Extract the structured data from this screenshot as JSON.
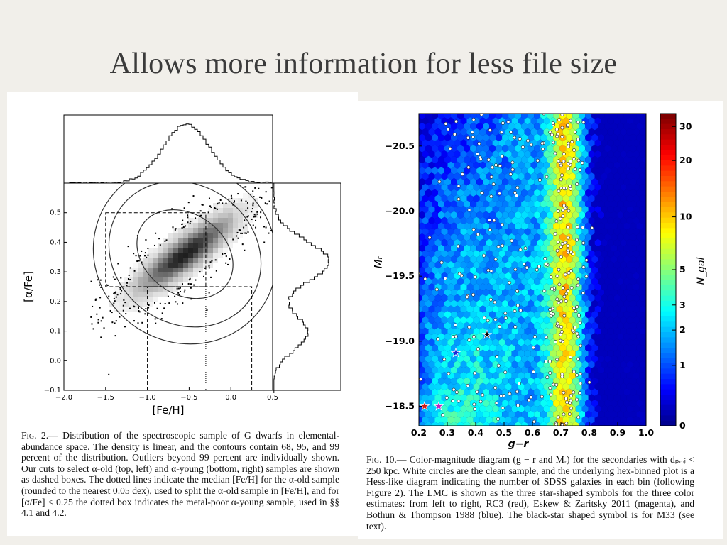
{
  "slide": {
    "title": "Allows more information for less file size"
  },
  "left_figure": {
    "chart_data": {
      "type": "scatter",
      "xlabel": "[Fe/H]",
      "ylabel": "[α/Fe]",
      "xlim": [
        -2.0,
        0.5
      ],
      "ylim": [
        -0.1,
        0.6
      ],
      "x_ticks": [
        "−2.0",
        "−1.5",
        "−1.0",
        "−0.5",
        "0.0",
        "0.5"
      ],
      "y_ticks": [
        "−0.1",
        "0.0",
        "0.1",
        "0.2",
        "0.3",
        "0.4",
        "0.5"
      ],
      "contour_levels_percent": [
        68,
        95,
        99
      ],
      "density_peak": {
        "x": -0.6,
        "y": 0.38
      },
      "alpha_old_box": {
        "x": [
          -1.5,
          -0.3
        ],
        "y": [
          0.25,
          0.5
        ]
      },
      "alpha_young_box": {
        "x": [
          -1.0,
          0.25
        ],
        "y": [
          -0.1,
          0.25
        ]
      },
      "metal_poor_young_box": {
        "x": [
          -1.0,
          -0.3
        ],
        "y": [
          -0.1,
          0.25
        ]
      },
      "median_feh_alpha_old": -0.55,
      "median_feh_alpha_young": -0.3
    },
    "fig_label": "Fig. 2.",
    "caption": "— Distribution of the spectroscopic sample of G dwarfs in elemental-abundance space. The density is linear, and the contours contain 68, 95, and 99 percent of the distribution. Outliers beyond 99 percent are individually shown. Our cuts to select α-old (top, left) and α-young (bottom, right) samples are shown as dashed boxes. The dotted lines indicate the median [Fe/H] for the α-old sample (rounded to the nearest 0.05 dex), used to split the α-old sample in [Fe/H], and for [α/Fe] < 0.25 the dotted box indicates the metal-poor α-young sample, used in §§ 4.1 and 4.2."
  },
  "right_figure": {
    "chart_data": {
      "type": "heatmap",
      "xlabel": "g−r",
      "ylabel": "Mᵣ",
      "xlim": [
        0.2,
        1.0
      ],
      "ylim": [
        -20.75,
        -18.35
      ],
      "x_ticks": [
        "0.2",
        "0.3",
        "0.4",
        "0.5",
        "0.6",
        "0.7",
        "0.8",
        "0.9",
        "1.0"
      ],
      "y_ticks": [
        "−20.5",
        "−20.0",
        "−19.5",
        "−19.0",
        "−18.5"
      ],
      "colorbar_label": "N_gal",
      "colorbar_ticks": [
        "30",
        "20",
        "10",
        "5",
        "3",
        "2",
        "1",
        "0"
      ],
      "colorbar_range": [
        0,
        35
      ],
      "ridge_peaks_gr": [
        0.32,
        0.72
      ],
      "stars": [
        {
          "name": "RC3",
          "color": "#d01818",
          "x": 0.22,
          "y": -18.5
        },
        {
          "name": "Eskew & Zaritsky 2011",
          "color": "#c020c0",
          "x": 0.27,
          "y": -18.5
        },
        {
          "name": "Bothun & Thompson 1988",
          "color": "#1c2ad8",
          "x": 0.33,
          "y": -18.91
        },
        {
          "name": "M33",
          "color": "#000000",
          "x": 0.44,
          "y": -19.05
        }
      ]
    },
    "fig_label": "Fig. 10.",
    "caption": "— Color-magnitude diagram (g − r and Mᵣ) for the secondaries with dₚᵣₒⱼ < 250 kpc. White circles are the clean sample, and the underlying hex-binned plot is a Hess-like diagram indicating the number of SDSS galaxies in each bin (following Figure 2). The LMC is shown as the three star-shaped symbols for the three color estimates: from left to right, RC3 (red), Eskew & Zaritsky 2011 (magenta), and Bothun & Thompson 1988 (blue). The black-star shaped symbol is for M33 (see text)."
  }
}
